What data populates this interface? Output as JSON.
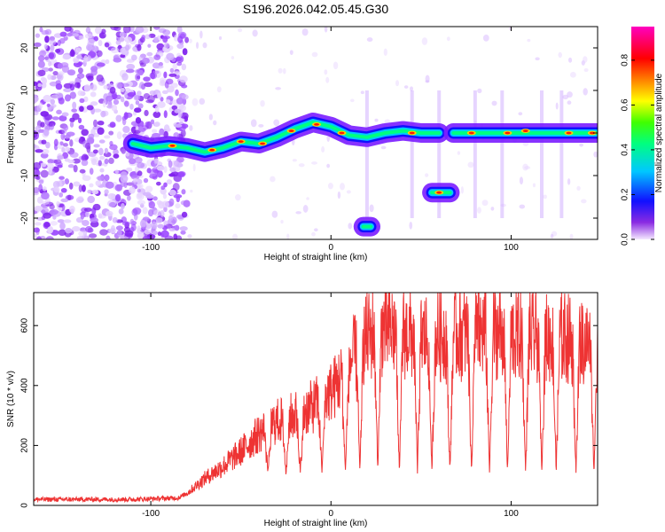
{
  "chart_data": [
    {
      "type": "heatmap",
      "name": "spectrogram",
      "title": "S196.2026.042.05.45.G30",
      "xlabel": "Height of straight line (km)",
      "ylabel": "Frequency (Hz)",
      "xlim": [
        -165,
        148
      ],
      "ylim": [
        -25,
        25
      ],
      "xticks": [
        -100,
        0,
        100
      ],
      "yticks": [
        -20,
        -10,
        0,
        10,
        20
      ],
      "xtick_labels": [
        "-100",
        "0",
        "100"
      ],
      "ytick_labels": [
        "-20",
        "-10",
        "0",
        "10",
        "20"
      ],
      "colorbar": {
        "label": "Normalized spectral amplitude",
        "range": [
          0.0,
          0.95
        ],
        "ticks": [
          0.0,
          0.2,
          0.4,
          0.6,
          0.8
        ],
        "tick_labels": [
          "0.0",
          "0.2",
          "0.4",
          "0.6",
          "0.8"
        ]
      },
      "ridge": {
        "x": [
          -110,
          -100,
          -90,
          -80,
          -70,
          -60,
          -50,
          -40,
          -30,
          -20,
          -10,
          0,
          10,
          20,
          30,
          40,
          50,
          60
        ],
        "freq": [
          -2.5,
          -3.5,
          -3.0,
          -3.5,
          -4.5,
          -3.5,
          -2.0,
          -2.5,
          -1.0,
          1.0,
          2.5,
          1.5,
          -0.5,
          -1.0,
          0.0,
          0.5,
          0.0,
          0.0
        ],
        "segment2": {
          "x": [
            68,
            148
          ],
          "freq": [
            0.0,
            0.0
          ]
        },
        "offset_blob": {
          "x": [
            56,
            66
          ],
          "freq": [
            -14,
            -14
          ]
        },
        "low_blob": {
          "x": [
            18,
            22
          ],
          "freq": [
            -22,
            -22
          ]
        }
      }
    },
    {
      "type": "line",
      "name": "snr",
      "xlabel": "Height of straight line (km)",
      "ylabel": "SNR (10 * v/v)",
      "xlim": [
        -165,
        148
      ],
      "ylim": [
        0,
        710
      ],
      "xticks": [
        -100,
        0,
        100
      ],
      "yticks": [
        0,
        200,
        400,
        600
      ],
      "xtick_labels": [
        "-100",
        "0",
        "100"
      ],
      "ytick_labels": [
        "0",
        "200",
        "400",
        "600"
      ],
      "color": "#ee3333",
      "envelope": {
        "x": [
          -165,
          -110,
          -85,
          -80,
          -70,
          -60,
          -50,
          -40,
          -30,
          -20,
          -10,
          0,
          5,
          10,
          15,
          20,
          25,
          30,
          50,
          70,
          90,
          110,
          130,
          148
        ],
        "y": [
          20,
          20,
          25,
          40,
          90,
          130,
          180,
          240,
          280,
          300,
          330,
          380,
          420,
          470,
          520,
          560,
          580,
          590,
          560,
          570,
          580,
          560,
          560,
          530
        ]
      },
      "dips_x": [
        -35,
        -25,
        -17,
        -5,
        8,
        16,
        26,
        38,
        48,
        56,
        66,
        78,
        88,
        98,
        108,
        117,
        125,
        136,
        146
      ],
      "dip_floor": 110
    }
  ]
}
